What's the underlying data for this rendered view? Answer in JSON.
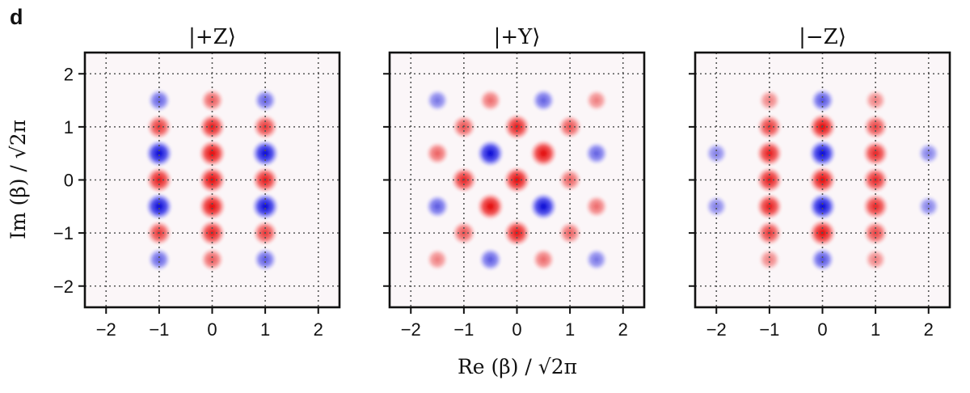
{
  "panel_label": "d",
  "chart_data": [
    {
      "type": "heatmap",
      "title": "|+Z⟩",
      "xlabel": "",
      "ylabel": "Im (β) / √2π",
      "xlim": [
        -2.4,
        2.4
      ],
      "ylim": [
        -2.4,
        2.4
      ],
      "xticks": [
        -2,
        -1,
        0,
        1,
        2
      ],
      "yticks": [
        -2,
        -1,
        0,
        1,
        2
      ],
      "xtick_labels": [
        "−2",
        "−1",
        "0",
        "1",
        "2"
      ],
      "ytick_labels": [
        "−2",
        "−1",
        "0",
        "1",
        "2"
      ],
      "grid": "dotted at integer values",
      "colors": {
        "positive": "#e00000",
        "negative": "#0000d0"
      },
      "peaks": [
        {
          "x": 0,
          "y": 0,
          "v": 1.0
        },
        {
          "x": 0,
          "y": 0.5,
          "v": 1.0
        },
        {
          "x": 0,
          "y": -0.5,
          "v": 1.0
        },
        {
          "x": 0,
          "y": 1,
          "v": 0.9
        },
        {
          "x": 0,
          "y": -1,
          "v": 0.9
        },
        {
          "x": 0,
          "y": 1.5,
          "v": 0.55
        },
        {
          "x": 0,
          "y": -1.5,
          "v": 0.55
        },
        {
          "x": -1,
          "y": 0,
          "v": 0.9
        },
        {
          "x": -1,
          "y": 1,
          "v": 0.75
        },
        {
          "x": -1,
          "y": -1,
          "v": 0.75
        },
        {
          "x": 1,
          "y": 0,
          "v": 0.9
        },
        {
          "x": 1,
          "y": 1,
          "v": 0.75
        },
        {
          "x": 1,
          "y": -1,
          "v": 0.75
        },
        {
          "x": -1,
          "y": 0.5,
          "v": -1.0
        },
        {
          "x": -1,
          "y": -0.5,
          "v": -1.0
        },
        {
          "x": 1,
          "y": 0.5,
          "v": -1.0
        },
        {
          "x": 1,
          "y": -0.5,
          "v": -1.0
        },
        {
          "x": -1,
          "y": 1.5,
          "v": -0.5
        },
        {
          "x": -1,
          "y": -1.5,
          "v": -0.5
        },
        {
          "x": 1,
          "y": 1.5,
          "v": -0.5
        },
        {
          "x": 1,
          "y": -1.5,
          "v": -0.55
        }
      ]
    },
    {
      "type": "heatmap",
      "title": "|+Y⟩",
      "xlabel": "Re (β) / √2π",
      "ylabel": "",
      "xlim": [
        -2.4,
        2.4
      ],
      "ylim": [
        -2.4,
        2.4
      ],
      "xticks": [
        -2,
        -1,
        0,
        1,
        2
      ],
      "yticks": [
        -2,
        -1,
        0,
        1,
        2
      ],
      "xtick_labels": [
        "−2",
        "−1",
        "0",
        "1",
        "2"
      ],
      "ytick_labels": [],
      "grid": "dotted at integer values",
      "colors": {
        "positive": "#e00000",
        "negative": "#0000d0"
      },
      "peaks": [
        {
          "x": 0,
          "y": 0,
          "v": 1.0
        },
        {
          "x": 0.5,
          "y": 0.5,
          "v": 1.0
        },
        {
          "x": -0.5,
          "y": -0.5,
          "v": 1.0
        },
        {
          "x": -0.5,
          "y": 0.5,
          "v": -1.0
        },
        {
          "x": 0.5,
          "y": -0.5,
          "v": -1.0
        },
        {
          "x": -1,
          "y": 0,
          "v": 0.85
        },
        {
          "x": 1,
          "y": 0,
          "v": 0.5
        },
        {
          "x": 0,
          "y": 1,
          "v": 0.9
        },
        {
          "x": 0,
          "y": -1,
          "v": 0.95
        },
        {
          "x": -1,
          "y": 1,
          "v": 0.6
        },
        {
          "x": 1,
          "y": 1,
          "v": 0.6
        },
        {
          "x": -1,
          "y": -1,
          "v": 0.6
        },
        {
          "x": 1,
          "y": -1,
          "v": 0.5
        },
        {
          "x": -1.5,
          "y": 0.5,
          "v": 0.5
        },
        {
          "x": 1.5,
          "y": 0.5,
          "v": -0.5
        },
        {
          "x": -1.5,
          "y": -0.5,
          "v": -0.55
        },
        {
          "x": 1.5,
          "y": -0.5,
          "v": 0.45
        },
        {
          "x": -0.5,
          "y": 1.5,
          "v": 0.45
        },
        {
          "x": 0.5,
          "y": 1.5,
          "v": -0.5
        },
        {
          "x": -0.5,
          "y": -1.5,
          "v": -0.55
        },
        {
          "x": 0.5,
          "y": -1.5,
          "v": 0.45
        },
        {
          "x": -1.5,
          "y": 1.5,
          "v": -0.4
        },
        {
          "x": 1.5,
          "y": 1.5,
          "v": 0.35
        },
        {
          "x": -1.5,
          "y": -1.5,
          "v": 0.35
        },
        {
          "x": 1.5,
          "y": -1.5,
          "v": -0.4
        }
      ]
    },
    {
      "type": "heatmap",
      "title": "|−Z⟩",
      "xlabel": "",
      "ylabel": "",
      "xlim": [
        -2.4,
        2.4
      ],
      "ylim": [
        -2.4,
        2.4
      ],
      "xticks": [
        -2,
        -1,
        0,
        1,
        2
      ],
      "yticks": [
        -2,
        -1,
        0,
        1,
        2
      ],
      "xtick_labels": [
        "−2",
        "−1",
        "0",
        "1",
        "2"
      ],
      "ytick_labels": [],
      "grid": "dotted at integer values",
      "colors": {
        "positive": "#e00000",
        "negative": "#0000d0"
      },
      "peaks": [
        {
          "x": 0,
          "y": 1,
          "v": 1.0
        },
        {
          "x": 0,
          "y": 0,
          "v": 1.0
        },
        {
          "x": 0,
          "y": -1,
          "v": 1.0
        },
        {
          "x": 0,
          "y": 0.5,
          "v": -1.0
        },
        {
          "x": 0,
          "y": -0.5,
          "v": -1.0
        },
        {
          "x": 0,
          "y": 1.5,
          "v": -0.6
        },
        {
          "x": 0,
          "y": -1.5,
          "v": -0.6
        },
        {
          "x": -1,
          "y": 1,
          "v": 0.75
        },
        {
          "x": -1,
          "y": 0.5,
          "v": 0.9
        },
        {
          "x": -1,
          "y": 0,
          "v": 0.9
        },
        {
          "x": -1,
          "y": -0.5,
          "v": 0.9
        },
        {
          "x": -1,
          "y": -1,
          "v": 0.75
        },
        {
          "x": -1,
          "y": 1.5,
          "v": 0.35
        },
        {
          "x": -1,
          "y": -1.5,
          "v": 0.35
        },
        {
          "x": 1,
          "y": 1,
          "v": 0.7
        },
        {
          "x": 1,
          "y": 0.5,
          "v": 0.85
        },
        {
          "x": 1,
          "y": 0,
          "v": 0.85
        },
        {
          "x": 1,
          "y": -0.5,
          "v": 0.85
        },
        {
          "x": 1,
          "y": -1,
          "v": 0.7
        },
        {
          "x": 1,
          "y": 1.5,
          "v": 0.35
        },
        {
          "x": 1,
          "y": -1.5,
          "v": 0.35
        },
        {
          "x": -2,
          "y": 0.5,
          "v": -0.35
        },
        {
          "x": -2,
          "y": -0.5,
          "v": -0.35
        },
        {
          "x": 2,
          "y": 0.5,
          "v": -0.35
        },
        {
          "x": 2,
          "y": -0.5,
          "v": -0.35
        }
      ]
    }
  ]
}
